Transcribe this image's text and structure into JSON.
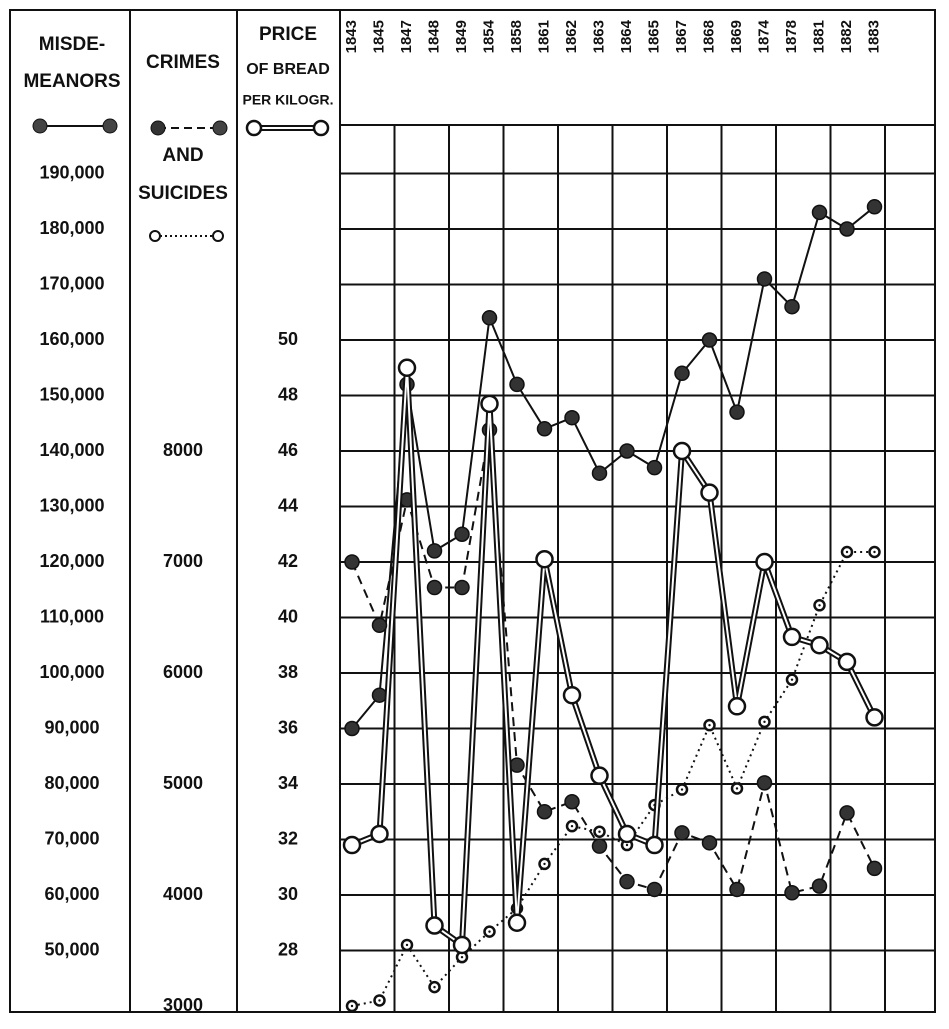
{
  "chart_data": {
    "type": "line",
    "ylabel": [
      "MISDE-",
      "MEANORS"
    ],
    "y2label": [
      "CRIMES",
      "AND",
      "SUICIDES"
    ],
    "y3label": [
      "PRICE",
      "OF BREAD",
      "PER KILOGR."
    ],
    "categories": [
      "1843",
      "1845",
      "1847",
      "1848",
      "1849",
      "1854",
      "1858",
      "1861",
      "1862",
      "1863",
      "1864",
      "1865",
      "1867",
      "1868",
      "1869",
      "1874",
      "1878",
      "1881",
      "1882",
      "1883"
    ],
    "ylim": [
      40000,
      200000
    ],
    "yticks": [
      {
        "value": 190000,
        "label": "190,000"
      },
      {
        "value": 180000,
        "label": "180,000"
      },
      {
        "value": 170000,
        "label": "170,000"
      },
      {
        "value": 160000,
        "label": "160,000"
      },
      {
        "value": 150000,
        "label": "150,000"
      },
      {
        "value": 140000,
        "label": "140,000"
      },
      {
        "value": 130000,
        "label": "130,000"
      },
      {
        "value": 120000,
        "label": "120,000"
      },
      {
        "value": 110000,
        "label": "110,000"
      },
      {
        "value": 100000,
        "label": "100,000"
      },
      {
        "value": 90000,
        "label": "90,000"
      },
      {
        "value": 80000,
        "label": "80,000"
      },
      {
        "value": 70000,
        "label": "70,000"
      },
      {
        "value": 60000,
        "label": "60,000"
      },
      {
        "value": 50000,
        "label": "50,000"
      }
    ],
    "y2lim": [
      3000,
      11000
    ],
    "y2ticks": [
      8000,
      7000,
      6000,
      5000,
      4000,
      3000
    ],
    "y3lim": [
      26,
      58
    ],
    "y3ticks": [
      50,
      48,
      46,
      44,
      42,
      40,
      38,
      36,
      34,
      32,
      30,
      28
    ],
    "grid": true,
    "series": [
      {
        "axis": "y",
        "style": "solid",
        "color": "#333333",
        "values": [
          90000,
          96000,
          152000,
          122000,
          125000,
          164000,
          152000,
          144000,
          146000,
          136000,
          140000,
          137000,
          154000,
          160000,
          147000,
          171000,
          166000,
          183000,
          180000,
          184000
        ]
      },
      {
        "axis": "y2",
        "style": "dashed",
        "color": "#333333",
        "values": [
          7000,
          6430,
          7560,
          6770,
          6770,
          8190,
          5170,
          4750,
          4840,
          4440,
          4120,
          4050,
          4560,
          4470,
          4050,
          5010,
          4020,
          4080,
          4740,
          4240
        ]
      },
      {
        "axis": "y2",
        "style": "dotted",
        "color": "#ffffff",
        "values": [
          3000,
          3050,
          3550,
          3170,
          3440,
          3670,
          3880,
          4280,
          4620,
          4570,
          4450,
          4810,
          4950,
          5530,
          4960,
          5560,
          5940,
          6610,
          7090,
          7090
        ]
      },
      {
        "axis": "y3",
        "style": "double",
        "color": "#ffffff",
        "values": [
          31.8,
          32.2,
          49.0,
          28.9,
          28.2,
          47.7,
          29.0,
          42.1,
          37.2,
          34.3,
          32.2,
          31.8,
          46.0,
          44.5,
          36.8,
          42.0,
          39.3,
          39.0,
          38.4,
          36.4
        ]
      }
    ]
  }
}
